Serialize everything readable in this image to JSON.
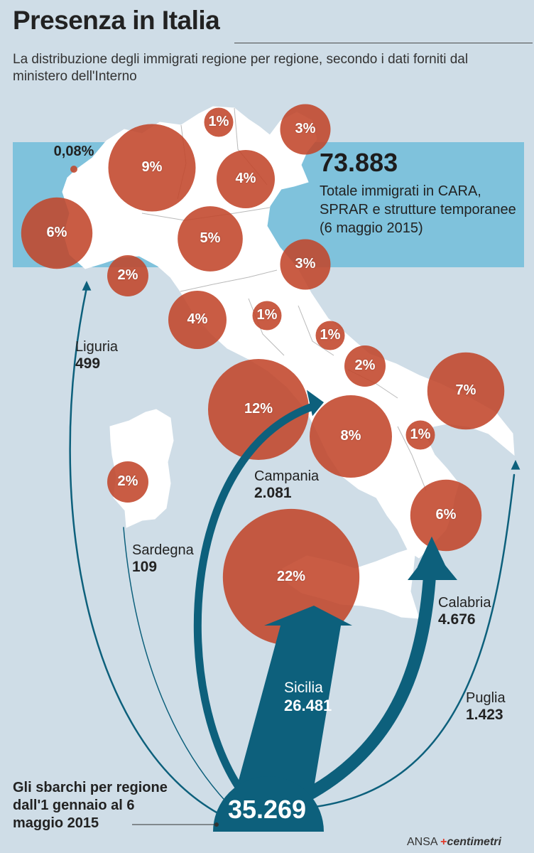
{
  "title": "Presenza in Italia",
  "subtitle": "La distribuzione degli immigrati regione per regione, secondo i dati forniti dal ministero dell'Interno",
  "total": {
    "value": "73.883",
    "description": "Totale immigrati in CARA, SPRAR e strutture temporanee (6 maggio 2015)"
  },
  "regions": [
    {
      "name": "Valle d'Aosta",
      "share_label": "0,08%",
      "share": 0.08
    },
    {
      "name": "Piemonte",
      "share_label": "6%",
      "share": 6
    },
    {
      "name": "Lombardia",
      "share_label": "9%",
      "share": 9
    },
    {
      "name": "Trentino-Alto Adige",
      "share_label": "1%",
      "share": 1
    },
    {
      "name": "Friuli-Venezia Giulia",
      "share_label": "3%",
      "share": 3
    },
    {
      "name": "Veneto",
      "share_label": "4%",
      "share": 4
    },
    {
      "name": "Emilia-Romagna",
      "share_label": "5%",
      "share": 5
    },
    {
      "name": "Liguria",
      "share_label": "2%",
      "share": 2
    },
    {
      "name": "Marche",
      "share_label": "3%",
      "share": 3
    },
    {
      "name": "Toscana",
      "share_label": "4%",
      "share": 4
    },
    {
      "name": "Umbria",
      "share_label": "1%",
      "share": 1
    },
    {
      "name": "Abruzzo",
      "share_label": "1%",
      "share": 1
    },
    {
      "name": "Molise",
      "share_label": "2%",
      "share": 2
    },
    {
      "name": "Puglia",
      "share_label": "7%",
      "share": 7
    },
    {
      "name": "Lazio",
      "share_label": "12%",
      "share": 12
    },
    {
      "name": "Campania",
      "share_label": "8%",
      "share": 8
    },
    {
      "name": "Basilicata",
      "share_label": "1%",
      "share": 1
    },
    {
      "name": "Sardegna",
      "share_label": "2%",
      "share": 2
    },
    {
      "name": "Calabria",
      "share_label": "6%",
      "share": 6
    },
    {
      "name": "Sicilia",
      "share_label": "22%",
      "share": 22
    }
  ],
  "landings": {
    "title": "Gli sbarchi per regione dall'1 gennaio al 6 maggio 2015",
    "total": "35.269",
    "flows": [
      {
        "region": "Liguria",
        "value": "499"
      },
      {
        "region": "Sardegna",
        "value": "109"
      },
      {
        "region": "Campania",
        "value": "2.081"
      },
      {
        "region": "Sicilia",
        "value": "26.481"
      },
      {
        "region": "Calabria",
        "value": "4.676"
      },
      {
        "region": "Puglia",
        "value": "1.423"
      }
    ]
  },
  "credit": {
    "agency": "ANSA",
    "brand": "centimetri"
  },
  "colors": {
    "background": "#cfdde7",
    "band": "#7fc2dc",
    "land": "#ffffff",
    "circle": "#c2452a",
    "flow": "#0d607c"
  }
}
